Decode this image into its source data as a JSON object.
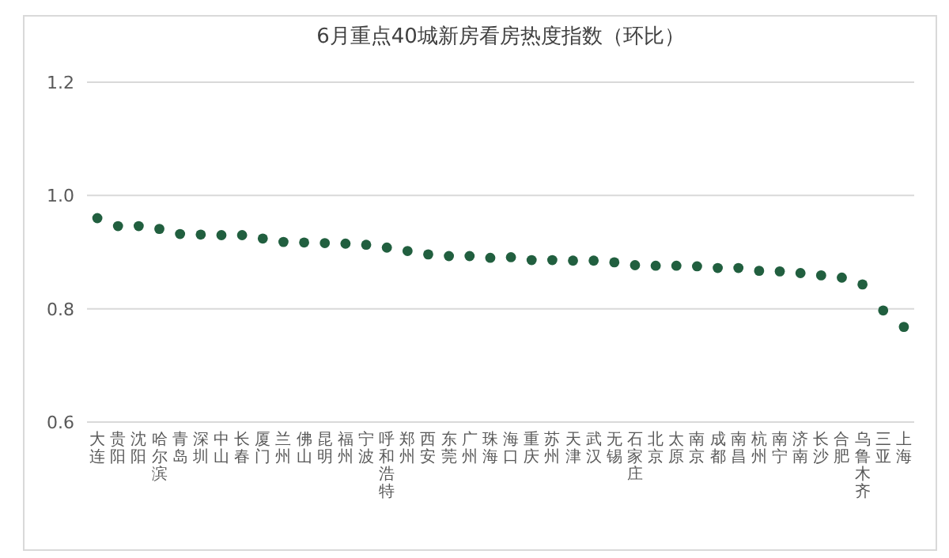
{
  "chart_data": {
    "type": "scatter",
    "title": "6月重点40城新房看房热度指数（环比）",
    "categories": [
      "大连",
      "贵阳",
      "沈阳",
      "哈尔滨",
      "青岛",
      "深圳",
      "中山",
      "长春",
      "厦门",
      "兰州",
      "佛山",
      "昆明",
      "福州",
      "宁波",
      "呼和浩特",
      "郑州",
      "西安",
      "东莞",
      "广州",
      "珠海",
      "海口",
      "重庆",
      "苏州",
      "天津",
      "武汉",
      "无锡",
      "石家庄",
      "北京",
      "太原",
      "南京",
      "成都",
      "南昌",
      "杭州",
      "南宁",
      "济南",
      "长沙",
      "合肥",
      "乌鲁木齐",
      "三亚",
      "上海"
    ],
    "values": [
      0.96,
      0.946,
      0.946,
      0.941,
      0.932,
      0.931,
      0.93,
      0.93,
      0.924,
      0.918,
      0.917,
      0.916,
      0.915,
      0.913,
      0.908,
      0.902,
      0.896,
      0.893,
      0.893,
      0.89,
      0.891,
      0.886,
      0.886,
      0.885,
      0.885,
      0.882,
      0.877,
      0.876,
      0.876,
      0.875,
      0.872,
      0.872,
      0.867,
      0.866,
      0.863,
      0.859,
      0.855,
      0.843,
      0.797,
      0.768
    ],
    "color": "#215f3f",
    "marker": "circle",
    "ylim": [
      0.6,
      1.2
    ],
    "yticks": [
      {
        "value": 0.6,
        "label": "0.6"
      },
      {
        "value": 0.8,
        "label": "0.8"
      },
      {
        "value": 1.0,
        "label": "1.0"
      },
      {
        "value": 1.2,
        "label": "1.2"
      }
    ],
    "grid": "y"
  }
}
